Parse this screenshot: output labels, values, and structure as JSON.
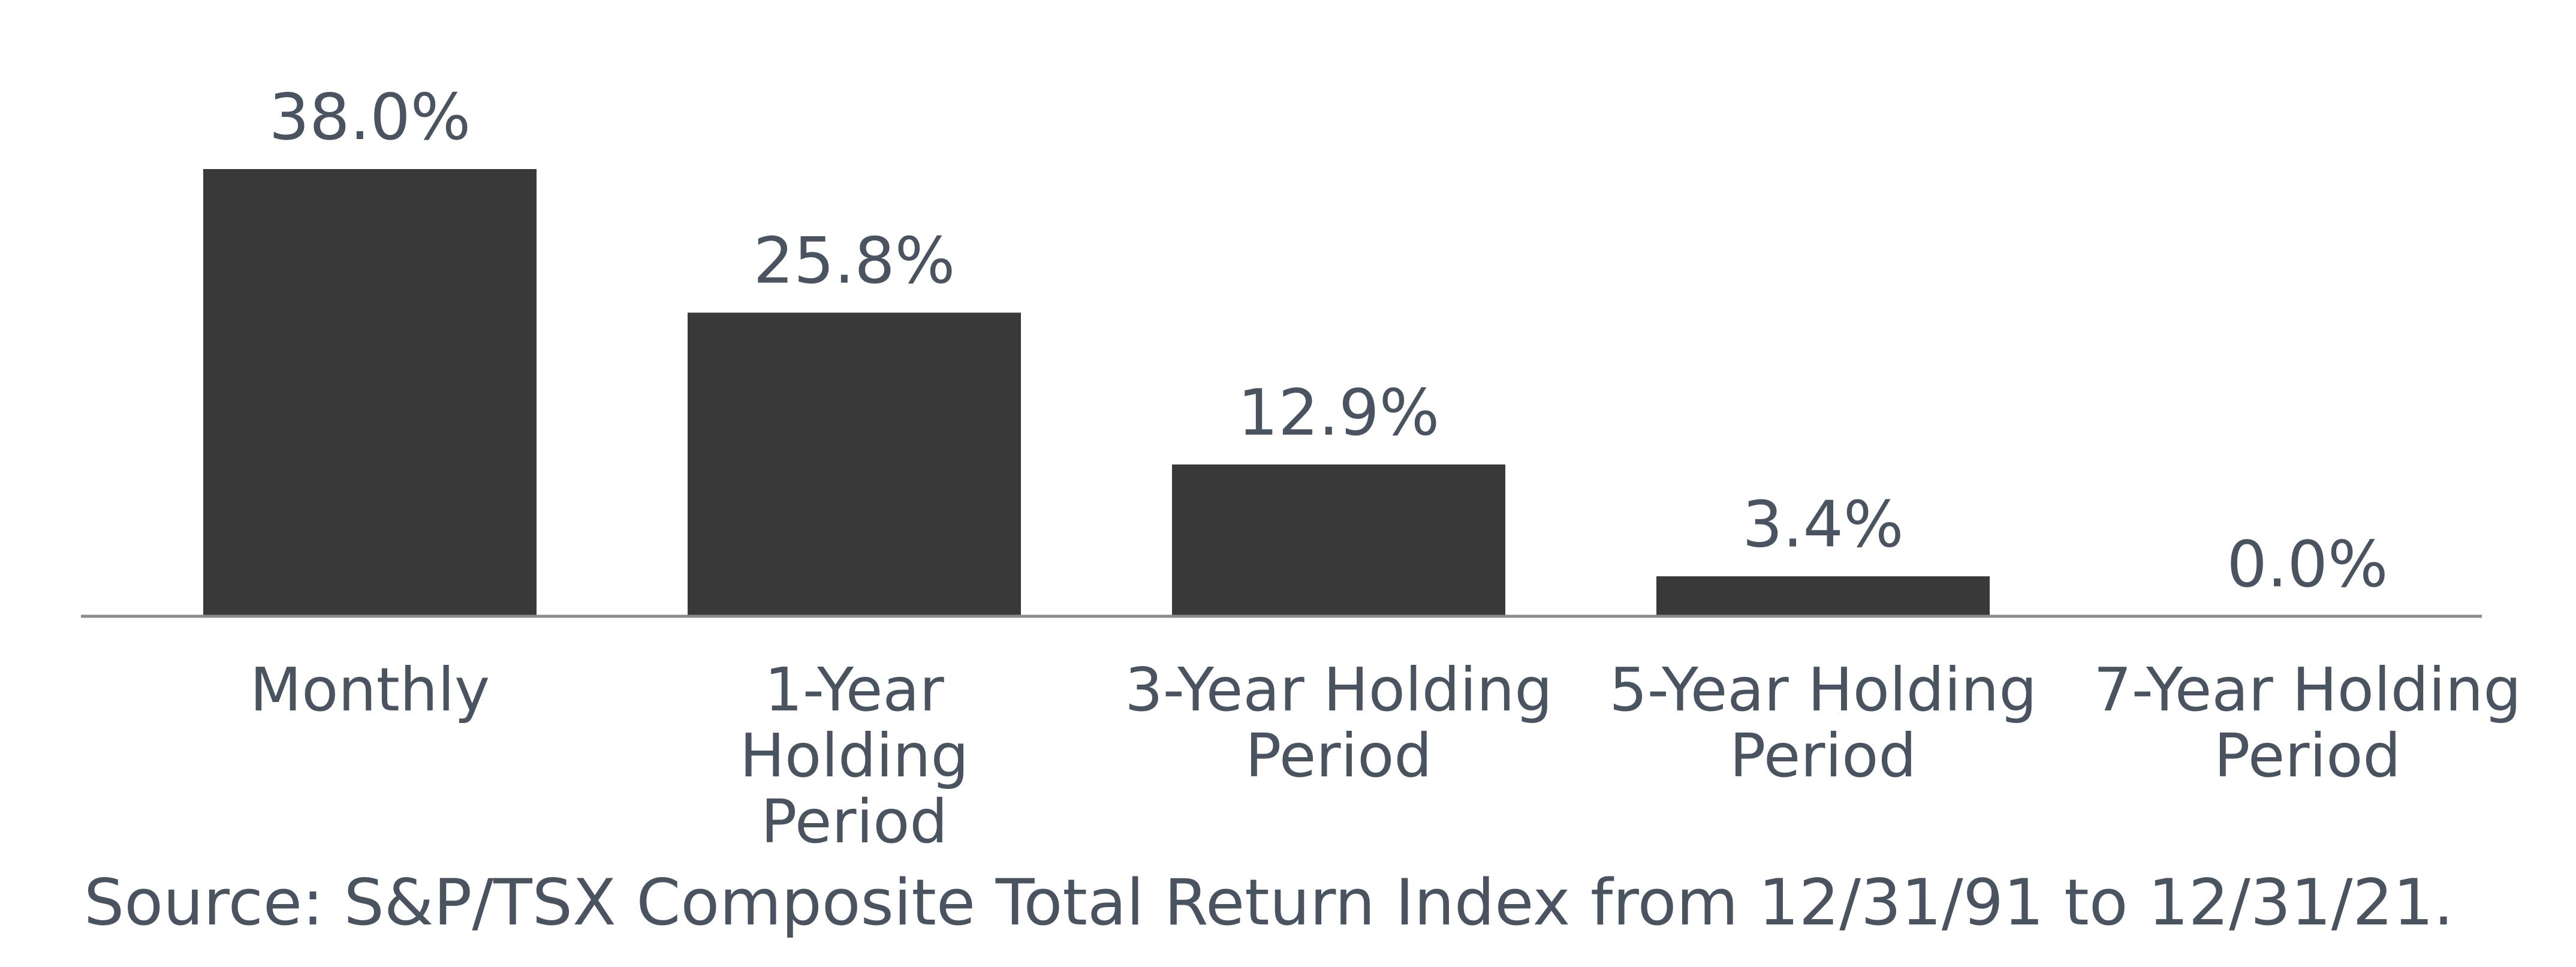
{
  "chart_data": {
    "type": "bar",
    "categories": [
      "Monthly",
      "1-Year Holding Period",
      "3-Year Holding Period",
      "5-Year Holding Period",
      "7-Year Holding Period"
    ],
    "category_label_lines": [
      [
        "Monthly"
      ],
      [
        "1-Year",
        "Holding",
        "Period"
      ],
      [
        "3-Year Holding",
        "Period"
      ],
      [
        "5-Year Holding",
        "Period"
      ],
      [
        "7-Year Holding",
        "Period"
      ]
    ],
    "values": [
      38.0,
      25.8,
      12.9,
      3.4,
      0.0
    ],
    "data_labels": [
      "38.0%",
      "25.8%",
      "12.9%",
      "3.4%",
      "0.0%"
    ],
    "ylim": [
      0,
      38.0
    ],
    "title": "",
    "xlabel": "",
    "ylabel": "",
    "grid": false,
    "legend": "none",
    "bar_color": "#3a393a",
    "text_color": "#4a5461",
    "axis_color": "#8a8a8a"
  },
  "source_note": "Source: S&P/TSX Composite Total Return Index from 12/31/91 to 12/31/21."
}
